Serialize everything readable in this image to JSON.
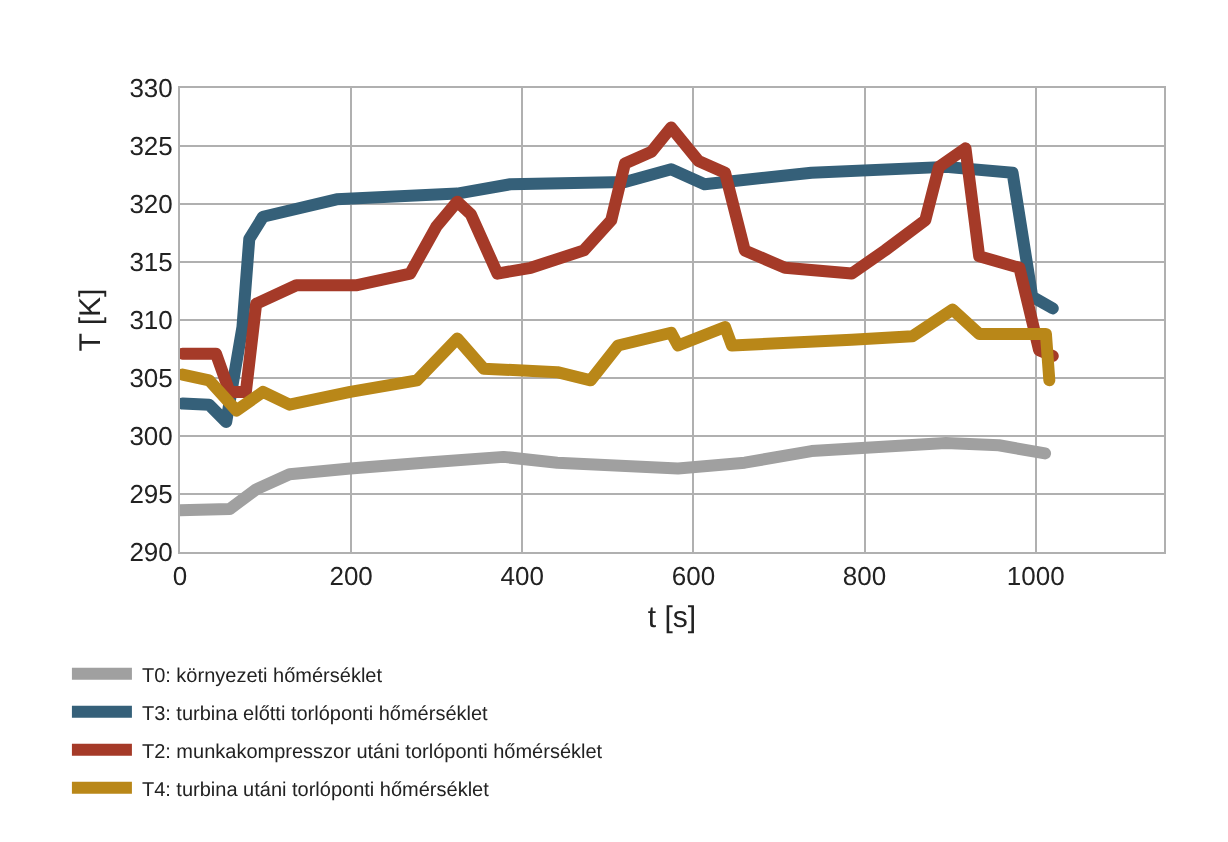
{
  "chart_data": {
    "type": "line",
    "xlabel": "t [s]",
    "ylabel": "T [K]",
    "xlim": [
      0,
      1150
    ],
    "xticks": [
      0,
      200,
      400,
      600,
      800,
      1000
    ],
    "ylim": [
      290,
      330
    ],
    "yticks": [
      290,
      295,
      300,
      305,
      310,
      315,
      320,
      325,
      330
    ],
    "grid": true,
    "legend": "bottom",
    "marker": "none",
    "line_style": "solid",
    "series": [
      {
        "name": "T0: környezeti hőmérséklet",
        "color": "#a0a0a0",
        "x": [
          0,
          58,
          89,
          128,
          199,
          285,
          378,
          441,
          582,
          660,
          738,
          895,
          957,
          1011
        ],
        "values": [
          293.6,
          293.7,
          295.4,
          296.7,
          297.2,
          297.7,
          298.2,
          297.7,
          297.2,
          297.7,
          298.7,
          299.4,
          299.2,
          298.5
        ]
      },
      {
        "name": "T3: turbina előtti torlóponti hőmérséklet",
        "color": "#356079",
        "x": [
          3,
          34,
          54,
          73,
          81,
          97,
          183,
          324,
          386,
          520,
          574,
          613,
          738,
          895,
          973,
          996,
          1020
        ],
        "values": [
          302.8,
          302.7,
          301.2,
          309.4,
          317,
          318.9,
          320.4,
          320.9,
          321.7,
          321.9,
          323,
          321.7,
          322.7,
          323.2,
          322.7,
          312,
          311
        ]
      },
      {
        "name": "T2: munkakompresszor utáni torlóponti hőmérséklet",
        "color": "#a53a28",
        "x": [
          3,
          42,
          58,
          77,
          89,
          136,
          207,
          269,
          300,
          324,
          340,
          371,
          410,
          472,
          504,
          520,
          551,
          574,
          606,
          637,
          660,
          707,
          785,
          824,
          871,
          887,
          918,
          934,
          981,
          1004,
          1020
        ],
        "values": [
          307.1,
          307.1,
          303.8,
          303.8,
          311.4,
          313,
          313,
          314,
          318.1,
          320.2,
          319.1,
          314,
          314.5,
          316,
          318.6,
          323.5,
          324.5,
          326.6,
          323.7,
          322.7,
          316,
          314.5,
          314,
          316,
          318.6,
          323.2,
          324.8,
          315.5,
          314.5,
          307.4,
          306.9
        ]
      },
      {
        "name": "T4: turbina utáni torlóponti hőmérséklet",
        "color": "#b98718",
        "x": [
          3,
          34,
          66,
          97,
          128,
          199,
          277,
          324,
          355,
          441,
          480,
          512,
          574,
          582,
          637,
          645,
          785,
          856,
          903,
          934,
          1012,
          1016
        ],
        "values": [
          305.3,
          304.8,
          302.2,
          303.8,
          302.7,
          303.8,
          304.8,
          308.4,
          305.8,
          305.5,
          304.8,
          307.8,
          308.9,
          307.8,
          309.4,
          307.8,
          308.3,
          308.6,
          310.9,
          308.8,
          308.8,
          304.8
        ]
      }
    ]
  }
}
